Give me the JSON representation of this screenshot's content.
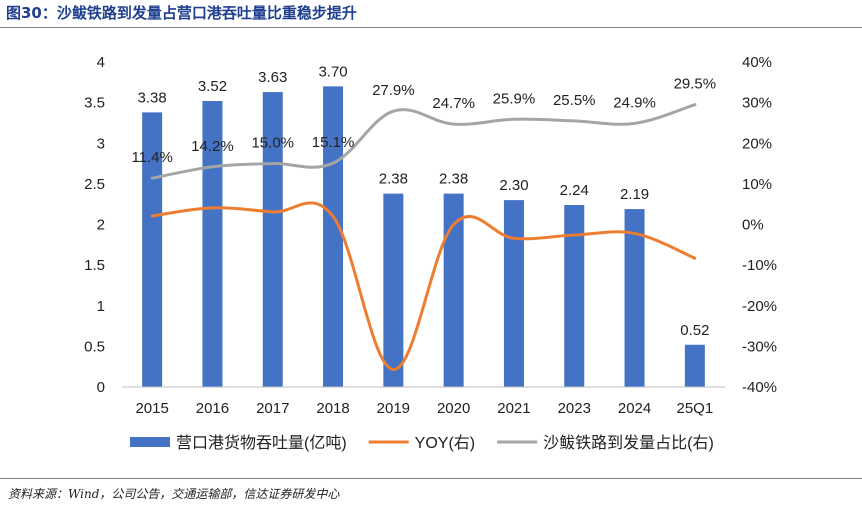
{
  "figure": {
    "title": "图30：沙鲅铁路到发量占营口港吞吐量比重稳步提升",
    "source": "资料来源：Wind，公司公告，交通运输部，信达证券研发中心"
  },
  "chart_data": {
    "type": "bar",
    "categories": [
      "2015",
      "2016",
      "2017",
      "2018",
      "2019",
      "2020",
      "2021",
      "2023",
      "2024",
      "25Q1"
    ],
    "series": [
      {
        "name": "营口港货物吞吐量(亿吨)",
        "type": "bar",
        "axis": "left",
        "color": "#4472c4",
        "values": [
          3.38,
          3.52,
          3.63,
          3.7,
          2.38,
          2.38,
          2.3,
          2.24,
          2.19,
          0.52
        ],
        "labels": [
          "3.38",
          "3.52",
          "3.63",
          "3.70",
          "2.38",
          "2.38",
          "2.30",
          "2.24",
          "2.19",
          "0.52"
        ]
      },
      {
        "name": "YOY(右)",
        "type": "line",
        "axis": "right",
        "color": "#ed7d31",
        "values": [
          2.1,
          4.1,
          3.1,
          2.0,
          -35.7,
          0.0,
          -3.4,
          -2.6,
          -2.2,
          -8.3
        ]
      },
      {
        "name": "沙鲅铁路到发量占比(右)",
        "type": "line",
        "axis": "right",
        "color": "#a5a5a5",
        "values": [
          11.4,
          14.2,
          15.0,
          15.1,
          27.9,
          24.7,
          25.9,
          25.5,
          24.9,
          29.5
        ],
        "labels": [
          "11.4%",
          "14.2%",
          "15.0%",
          "15.1%",
          "27.9%",
          "24.7%",
          "25.9%",
          "25.5%",
          "24.9%",
          "29.5%"
        ]
      }
    ],
    "left_axis": {
      "min": 0,
      "max": 4,
      "ticks": [
        "0",
        "0.5",
        "1",
        "1.5",
        "2",
        "2.5",
        "3",
        "3.5",
        "4"
      ]
    },
    "right_axis": {
      "min": -40,
      "max": 40,
      "ticks": [
        "-40%",
        "-30%",
        "-20%",
        "-10%",
        "0%",
        "10%",
        "20%",
        "30%",
        "40%"
      ]
    },
    "grid": false,
    "legend_position": "bottom"
  }
}
